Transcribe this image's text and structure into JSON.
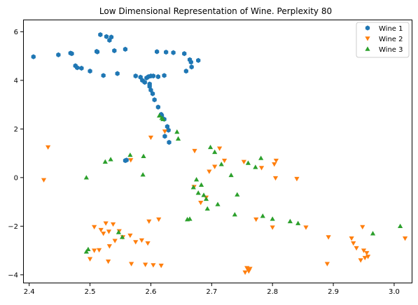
{
  "chart_data": {
    "type": "scatter",
    "title": "Low Dimensional Representation of Wine. Perplexity 80",
    "xlabel": "",
    "ylabel": "",
    "xlim": [
      2.39,
      3.03
    ],
    "ylim": [
      -4.35,
      6.5
    ],
    "xticks": [
      2.4,
      2.5,
      2.6,
      2.7,
      2.8,
      2.9,
      3.0
    ],
    "xtick_labels": [
      "2.4",
      "2.5",
      "2.6",
      "2.7",
      "2.8",
      "2.9",
      "3.0"
    ],
    "yticks": [
      -4,
      -2,
      0,
      2,
      4,
      6
    ],
    "ytick_labels": [
      "−4",
      "−2",
      "0",
      "2",
      "4",
      "6"
    ],
    "grid": false,
    "legend_position": "top-right",
    "series": [
      {
        "name": "Wine 1",
        "color": "#1f77b4",
        "marker": "hexagon",
        "points": [
          [
            2.407,
            4.97
          ],
          [
            2.448,
            5.05
          ],
          [
            2.468,
            5.12
          ],
          [
            2.47,
            5.1
          ],
          [
            2.476,
            4.6
          ],
          [
            2.479,
            4.52
          ],
          [
            2.486,
            4.5
          ],
          [
            2.5,
            4.38
          ],
          [
            2.511,
            5.19
          ],
          [
            2.512,
            5.17
          ],
          [
            2.517,
            5.88
          ],
          [
            2.522,
            4.2
          ],
          [
            2.527,
            5.8
          ],
          [
            2.532,
            5.65
          ],
          [
            2.535,
            5.78
          ],
          [
            2.54,
            5.22
          ],
          [
            2.545,
            4.28
          ],
          [
            2.558,
            5.28
          ],
          [
            2.575,
            4.18
          ],
          [
            2.583,
            4.13
          ],
          [
            2.586,
            4.0
          ],
          [
            2.59,
            3.92
          ],
          [
            2.593,
            4.1
          ],
          [
            2.596,
            4.15
          ],
          [
            2.6,
            4.18
          ],
          [
            2.604,
            4.18
          ],
          [
            2.61,
            5.18
          ],
          [
            2.612,
            4.15
          ],
          [
            2.622,
            4.2
          ],
          [
            2.625,
            5.16
          ],
          [
            2.637,
            5.14
          ],
          [
            2.655,
            5.1
          ],
          [
            2.658,
            4.38
          ],
          [
            2.664,
            4.85
          ],
          [
            2.666,
            4.75
          ],
          [
            2.667,
            4.55
          ],
          [
            2.678,
            4.82
          ],
          [
            2.598,
            3.75
          ],
          [
            2.6,
            3.6
          ],
          [
            2.603,
            3.45
          ],
          [
            2.606,
            3.2
          ],
          [
            2.612,
            2.9
          ],
          [
            2.618,
            2.55
          ],
          [
            2.622,
            2.4
          ],
          [
            2.627,
            2.1
          ],
          [
            2.629,
            1.95
          ],
          [
            2.623,
            1.7
          ],
          [
            2.63,
            1.45
          ],
          [
            2.56,
            0.72
          ],
          [
            2.558,
            0.7
          ],
          [
            2.598,
            3.85
          ],
          [
            2.617,
            2.6
          ]
        ]
      },
      {
        "name": "Wine 2",
        "color": "#ff7f0e",
        "marker": "triangle-down",
        "points": [
          [
            2.424,
            -0.1
          ],
          [
            2.431,
            1.25
          ],
          [
            2.507,
            -2.03
          ],
          [
            2.518,
            -2.15
          ],
          [
            2.522,
            -2.3
          ],
          [
            2.526,
            -1.88
          ],
          [
            2.531,
            -2.22
          ],
          [
            2.538,
            -1.92
          ],
          [
            2.541,
            -2.6
          ],
          [
            2.548,
            -2.2
          ],
          [
            2.554,
            -2.45
          ],
          [
            2.566,
            -2.38
          ],
          [
            2.575,
            -2.65
          ],
          [
            2.585,
            -2.58
          ],
          [
            2.597,
            -1.8
          ],
          [
            2.613,
            -1.72
          ],
          [
            2.595,
            -2.7
          ],
          [
            2.5,
            -3.35
          ],
          [
            2.507,
            -3.0
          ],
          [
            2.515,
            -2.98
          ],
          [
            2.53,
            -3.45
          ],
          [
            2.532,
            -2.82
          ],
          [
            2.568,
            -3.55
          ],
          [
            2.591,
            -3.58
          ],
          [
            2.604,
            -3.6
          ],
          [
            2.617,
            -3.62
          ],
          [
            2.567,
            0.72
          ],
          [
            2.6,
            1.65
          ],
          [
            2.623,
            1.9
          ],
          [
            2.672,
            1.1
          ],
          [
            2.671,
            -0.38
          ],
          [
            2.682,
            -1.03
          ],
          [
            2.691,
            -0.82
          ],
          [
            2.696,
            0.25
          ],
          [
            2.705,
            0.45
          ],
          [
            2.713,
            1.2
          ],
          [
            2.721,
            0.7
          ],
          [
            2.753,
            0.65
          ],
          [
            2.758,
            -3.72
          ],
          [
            2.76,
            -3.8
          ],
          [
            2.763,
            -3.75
          ],
          [
            2.755,
            -3.9
          ],
          [
            2.761,
            -3.85
          ],
          [
            2.773,
            -1.72
          ],
          [
            2.782,
            0.4
          ],
          [
            2.8,
            -2.05
          ],
          [
            2.806,
            0.7
          ],
          [
            2.803,
            0.55
          ],
          [
            2.805,
            -0.02
          ],
          [
            2.84,
            -0.05
          ],
          [
            2.855,
            -2.05
          ],
          [
            2.892,
            -2.45
          ],
          [
            2.89,
            -3.55
          ],
          [
            2.93,
            -2.5
          ],
          [
            2.933,
            -2.7
          ],
          [
            2.938,
            -2.9
          ],
          [
            2.948,
            -2.03
          ],
          [
            2.95,
            -3.0
          ],
          [
            2.955,
            -3.1
          ],
          [
            2.952,
            -3.3
          ],
          [
            2.957,
            -3.25
          ],
          [
            2.945,
            -3.4
          ],
          [
            3.018,
            -2.5
          ]
        ]
      },
      {
        "name": "Wine 3",
        "color": "#2ca02c",
        "marker": "triangle-up",
        "points": [
          [
            2.494,
            0.0
          ],
          [
            2.494,
            -3.05
          ],
          [
            2.497,
            -2.95
          ],
          [
            2.525,
            0.65
          ],
          [
            2.534,
            0.75
          ],
          [
            2.547,
            -2.25
          ],
          [
            2.553,
            -2.45
          ],
          [
            2.566,
            0.93
          ],
          [
            2.587,
            0.12
          ],
          [
            2.588,
            0.88
          ],
          [
            2.614,
            2.55
          ],
          [
            2.618,
            2.45
          ],
          [
            2.62,
            2.4
          ],
          [
            2.643,
            1.88
          ],
          [
            2.645,
            1.6
          ],
          [
            2.66,
            -1.72
          ],
          [
            2.664,
            -1.7
          ],
          [
            2.67,
            -0.4
          ],
          [
            2.675,
            -0.08
          ],
          [
            2.678,
            -0.63
          ],
          [
            2.683,
            -0.3
          ],
          [
            2.687,
            -0.72
          ],
          [
            2.691,
            -0.88
          ],
          [
            2.693,
            -1.28
          ],
          [
            2.698,
            1.25
          ],
          [
            2.705,
            1.05
          ],
          [
            2.71,
            -1.1
          ],
          [
            2.716,
            0.55
          ],
          [
            2.732,
            0.1
          ],
          [
            2.738,
            -1.52
          ],
          [
            2.742,
            -0.7
          ],
          [
            2.76,
            0.6
          ],
          [
            2.772,
            0.43
          ],
          [
            2.781,
            0.8
          ],
          [
            2.784,
            -1.58
          ],
          [
            2.8,
            -1.7
          ],
          [
            2.829,
            -1.8
          ],
          [
            2.842,
            -1.88
          ],
          [
            2.965,
            -2.3
          ],
          [
            3.01,
            -2.0
          ]
        ]
      }
    ]
  }
}
